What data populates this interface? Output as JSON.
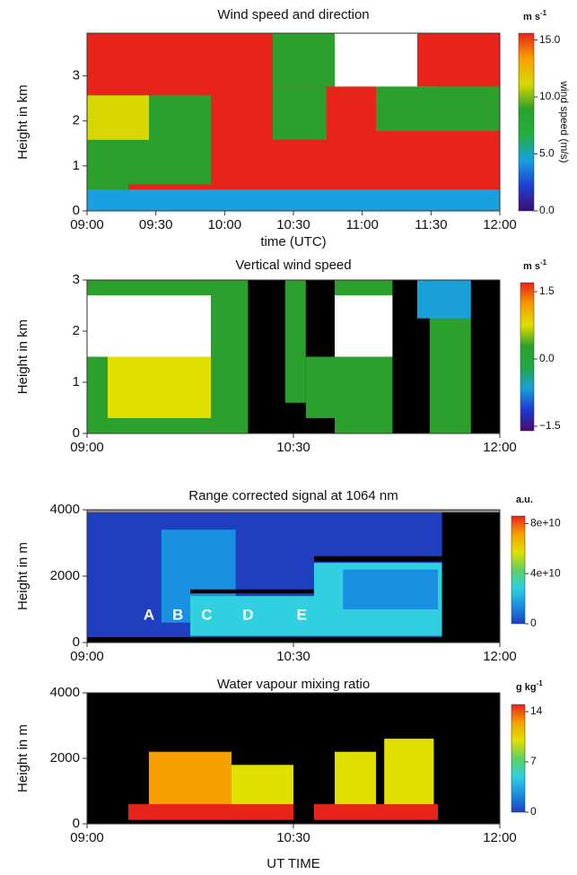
{
  "chart_data": [
    {
      "type": "heatmap",
      "title": "Wind speed and direction",
      "xlabel": "time (UTC)",
      "ylabel": "Height in km",
      "xlim": [
        9,
        12
      ],
      "xticks": [
        {
          "value": 9,
          "label": "09:00"
        },
        {
          "value": 9.5,
          "label": "09:30"
        },
        {
          "value": 10,
          "label": "10:00"
        },
        {
          "value": 10.5,
          "label": "10:30"
        },
        {
          "value": 11,
          "label": "11:00"
        },
        {
          "value": 11.5,
          "label": "11:30"
        },
        {
          "value": 12,
          "label": "12:00"
        }
      ],
      "ylim": [
        0,
        3.95
      ],
      "yticks": [
        0,
        1,
        2,
        3
      ],
      "colorbar": {
        "unit": "m s",
        "unit_sup": "-1",
        "label": "wind speed (m/s)",
        "lim": [
          0,
          15.6
        ],
        "ticks": [
          {
            "value": 15,
            "label": "15.0"
          },
          {
            "value": 10,
            "label": "10.0"
          },
          {
            "value": 5,
            "label": "5.0"
          },
          {
            "value": 0,
            "label": "0.0"
          }
        ],
        "colorscale": [
          "#3b0f70",
          "#1f3fd0",
          "#18a0e0",
          "#20b040",
          "#2ca02c",
          "#d8d800",
          "#f5a000",
          "#e8231a"
        ]
      }
    },
    {
      "type": "heatmap",
      "title": "Vertical wind speed",
      "ylabel": "Height in km",
      "xlim": [
        9,
        12
      ],
      "xticks": [
        {
          "value": 9,
          "label": "09:00"
        },
        {
          "value": 10.5,
          "label": "10:30"
        },
        {
          "value": 12,
          "label": "12:00"
        }
      ],
      "ylim": [
        0,
        3
      ],
      "yticks": [
        0,
        1,
        2,
        3
      ],
      "colorbar": {
        "unit": "m s",
        "unit_sup": "-1",
        "lim": [
          -1.6,
          1.7
        ],
        "ticks": [
          {
            "value": 1.5,
            "label": "1.5"
          },
          {
            "value": 0,
            "label": "0.0"
          },
          {
            "value": -1.5,
            "label": "−1.5"
          }
        ],
        "colorscale": [
          "#4b0a6e",
          "#1a3ad0",
          "#1aa0d8",
          "#22a84a",
          "#2ca02c",
          "#e0e000",
          "#f59a00",
          "#e8231a"
        ]
      }
    },
    {
      "type": "heatmap",
      "title": "Range corrected signal at 1064 nm",
      "ylabel": "Height in m",
      "xlim": [
        9,
        12
      ],
      "xticks": [
        {
          "value": 9,
          "label": "09:00"
        },
        {
          "value": 10.5,
          "label": "10:30"
        },
        {
          "value": 12,
          "label": "12:00"
        }
      ],
      "ylim": [
        0,
        4000
      ],
      "yticks": [
        0,
        2000,
        4000
      ],
      "annotations": [
        "A",
        "B",
        "C",
        "D",
        "E"
      ],
      "colorbar": {
        "unit": "a.u.",
        "lim": [
          0,
          86000000000.0
        ],
        "ticks": [
          {
            "value": 80000000000,
            "label": "8e+10"
          },
          {
            "value": 40000000000,
            "label": "4e+10"
          },
          0
        ],
        "colorscale": [
          "#1f3fc0",
          "#1a90e0",
          "#30d0e0",
          "#60d060",
          "#e0e000",
          "#f5a000",
          "#e8231a"
        ]
      }
    },
    {
      "type": "heatmap",
      "title": "Water vapour mixing ratio",
      "xlabel": "UT TIME",
      "ylabel": "Height in m",
      "xlim": [
        9,
        12
      ],
      "xticks": [
        {
          "value": 9,
          "label": "09:00"
        },
        {
          "value": 10.5,
          "label": "10:30"
        },
        {
          "value": 12,
          "label": "12:00"
        }
      ],
      "ylim": [
        0,
        4000
      ],
      "yticks": [
        0,
        2000,
        4000
      ],
      "colorbar": {
        "unit": "g kg",
        "unit_sup": "-1",
        "lim": [
          0,
          15
        ],
        "ticks": [
          14,
          7,
          0
        ],
        "colorscale": [
          "#1f3fc0",
          "#1a90e0",
          "#30d0e0",
          "#60d060",
          "#e0e000",
          "#f5a000",
          "#e8231a"
        ]
      }
    }
  ]
}
